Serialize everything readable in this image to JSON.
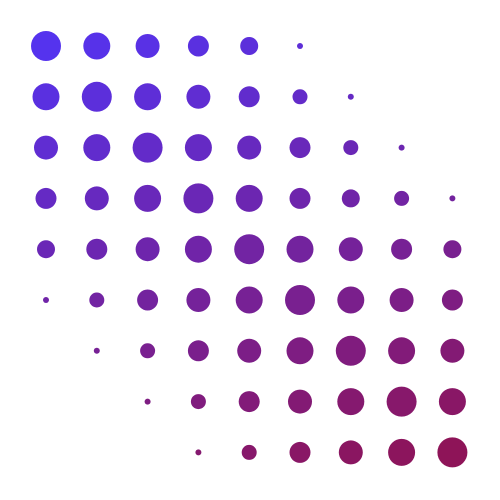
{
  "grid": {
    "rows": 9,
    "cols": 9,
    "top_color": "#5533ee",
    "bottom_color": "#8e1458",
    "radius_levels": [
      [
        5,
        4.5,
        4,
        3.5,
        3,
        1,
        0,
        0,
        0
      ],
      [
        4.5,
        5,
        4.5,
        4,
        3.5,
        2.5,
        1,
        0,
        0
      ],
      [
        4,
        4.5,
        5,
        4.5,
        4,
        3.5,
        2.5,
        1,
        0
      ],
      [
        3.5,
        4,
        4.5,
        5,
        4.5,
        3.5,
        3,
        2.5,
        1
      ],
      [
        3,
        3.5,
        4,
        4.5,
        5,
        4.5,
        4,
        3.5,
        3
      ],
      [
        1,
        2.5,
        3.5,
        4,
        4.5,
        5,
        4.5,
        4,
        3.5
      ],
      [
        0,
        1,
        2.5,
        3.5,
        4,
        4.5,
        5,
        4.5,
        4
      ],
      [
        0,
        0,
        1,
        2.5,
        3.5,
        4,
        4.5,
        5,
        4.5
      ],
      [
        0,
        0,
        0,
        1,
        2.5,
        3.5,
        4,
        4.5,
        5
      ]
    ]
  }
}
